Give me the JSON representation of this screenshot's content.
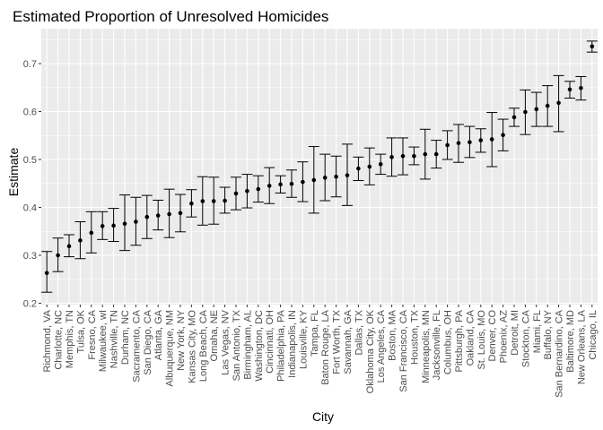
{
  "chart_data": {
    "type": "scatter",
    "title": "Estimated Proportion of Unresolved Homicides",
    "xlabel": "City",
    "ylabel": "Estimate",
    "ylim": [
      0.2,
      0.75
    ],
    "yticks": [
      0.2,
      0.3,
      0.4,
      0.5,
      0.6,
      0.7
    ],
    "grid": true,
    "background": "#ebebeb",
    "gridline_color": "#ffffff",
    "point_color": "#000000",
    "cities": [
      {
        "city": "Richmond, VA",
        "estimate": 0.263,
        "lower": 0.223,
        "upper": 0.308
      },
      {
        "city": "Charlotte, NC",
        "estimate": 0.3,
        "lower": 0.266,
        "upper": 0.336
      },
      {
        "city": "Memphis, TN",
        "estimate": 0.319,
        "lower": 0.297,
        "upper": 0.343
      },
      {
        "city": "Tulsa, OK",
        "estimate": 0.331,
        "lower": 0.293,
        "upper": 0.37
      },
      {
        "city": "Fresno, CA",
        "estimate": 0.347,
        "lower": 0.305,
        "upper": 0.391
      },
      {
        "city": "Milwaukee, wI",
        "estimate": 0.361,
        "lower": 0.333,
        "upper": 0.391
      },
      {
        "city": "Nashville, TN",
        "estimate": 0.362,
        "lower": 0.329,
        "upper": 0.398
      },
      {
        "city": "Durham, NC",
        "estimate": 0.366,
        "lower": 0.31,
        "upper": 0.426
      },
      {
        "city": "Sacramento, CA",
        "estimate": 0.37,
        "lower": 0.321,
        "upper": 0.421
      },
      {
        "city": "San Diego, CA",
        "estimate": 0.38,
        "lower": 0.335,
        "upper": 0.425
      },
      {
        "city": "Atlanta, GA",
        "estimate": 0.383,
        "lower": 0.353,
        "upper": 0.415
      },
      {
        "city": "Albuquerque, NM",
        "estimate": 0.386,
        "lower": 0.337,
        "upper": 0.438
      },
      {
        "city": "New York, NY",
        "estimate": 0.388,
        "lower": 0.349,
        "upper": 0.427
      },
      {
        "city": "Kansas City, MO",
        "estimate": 0.408,
        "lower": 0.38,
        "upper": 0.437
      },
      {
        "city": "Long Beach, CA",
        "estimate": 0.413,
        "lower": 0.363,
        "upper": 0.464
      },
      {
        "city": "Omaha, NE",
        "estimate": 0.413,
        "lower": 0.365,
        "upper": 0.463
      },
      {
        "city": "Las Vegas, NV",
        "estimate": 0.414,
        "lower": 0.388,
        "upper": 0.442
      },
      {
        "city": "San Antonio, TX",
        "estimate": 0.429,
        "lower": 0.395,
        "upper": 0.463
      },
      {
        "city": "Birmingham, AL",
        "estimate": 0.434,
        "lower": 0.399,
        "upper": 0.469
      },
      {
        "city": "Washington, DC",
        "estimate": 0.438,
        "lower": 0.411,
        "upper": 0.466
      },
      {
        "city": "Cincinnati, OH",
        "estimate": 0.445,
        "lower": 0.408,
        "upper": 0.483
      },
      {
        "city": "Philadelphia, PA",
        "estimate": 0.448,
        "lower": 0.43,
        "upper": 0.466
      },
      {
        "city": "Indianapolis, IN",
        "estimate": 0.449,
        "lower": 0.421,
        "upper": 0.478
      },
      {
        "city": "Louisville, KY",
        "estimate": 0.453,
        "lower": 0.412,
        "upper": 0.495
      },
      {
        "city": "Tampa, FL",
        "estimate": 0.457,
        "lower": 0.388,
        "upper": 0.527
      },
      {
        "city": "Baton Rouge, LA",
        "estimate": 0.462,
        "lower": 0.414,
        "upper": 0.511
      },
      {
        "city": "Fort Worth, TX",
        "estimate": 0.464,
        "lower": 0.422,
        "upper": 0.507
      },
      {
        "city": "Savannah, GA",
        "estimate": 0.467,
        "lower": 0.404,
        "upper": 0.532
      },
      {
        "city": "Dallas, TX",
        "estimate": 0.481,
        "lower": 0.456,
        "upper": 0.505
      },
      {
        "city": "Oklahoma City, OK",
        "estimate": 0.485,
        "lower": 0.447,
        "upper": 0.524
      },
      {
        "city": "Los Angeles, CA",
        "estimate": 0.49,
        "lower": 0.469,
        "upper": 0.511
      },
      {
        "city": "Boston, MA",
        "estimate": 0.505,
        "lower": 0.465,
        "upper": 0.545
      },
      {
        "city": "San Francisco, CA",
        "estimate": 0.507,
        "lower": 0.468,
        "upper": 0.545
      },
      {
        "city": "Houston, TX",
        "estimate": 0.507,
        "lower": 0.489,
        "upper": 0.526
      },
      {
        "city": "Minneapolis, MN",
        "estimate": 0.511,
        "lower": 0.459,
        "upper": 0.563
      },
      {
        "city": "Jacksonville, FL",
        "estimate": 0.511,
        "lower": 0.482,
        "upper": 0.54
      },
      {
        "city": "Columbus, OH",
        "estimate": 0.53,
        "lower": 0.5,
        "upper": 0.56
      },
      {
        "city": "Pittsburgh, PA",
        "estimate": 0.534,
        "lower": 0.494,
        "upper": 0.573
      },
      {
        "city": "Oakland, CA",
        "estimate": 0.536,
        "lower": 0.504,
        "upper": 0.569
      },
      {
        "city": "St. Louis, MO",
        "estimate": 0.54,
        "lower": 0.515,
        "upper": 0.564
      },
      {
        "city": "Denver, CO",
        "estimate": 0.542,
        "lower": 0.485,
        "upper": 0.598
      },
      {
        "city": "Phoenix, AZ",
        "estimate": 0.551,
        "lower": 0.518,
        "upper": 0.584
      },
      {
        "city": "Detroit, MI",
        "estimate": 0.588,
        "lower": 0.569,
        "upper": 0.607
      },
      {
        "city": "Stockton, CA",
        "estimate": 0.599,
        "lower": 0.552,
        "upper": 0.645
      },
      {
        "city": "Miami, FL",
        "estimate": 0.605,
        "lower": 0.569,
        "upper": 0.64
      },
      {
        "city": "Buffalo, NY",
        "estimate": 0.612,
        "lower": 0.569,
        "upper": 0.654
      },
      {
        "city": "San Bernardino, CA",
        "estimate": 0.618,
        "lower": 0.558,
        "upper": 0.675
      },
      {
        "city": "Baltimore, MD",
        "estimate": 0.646,
        "lower": 0.628,
        "upper": 0.663
      },
      {
        "city": "New Orleans, LA",
        "estimate": 0.649,
        "lower": 0.624,
        "upper": 0.673
      },
      {
        "city": "Chicago, IL",
        "estimate": 0.736,
        "lower": 0.724,
        "upper": 0.747
      }
    ]
  }
}
